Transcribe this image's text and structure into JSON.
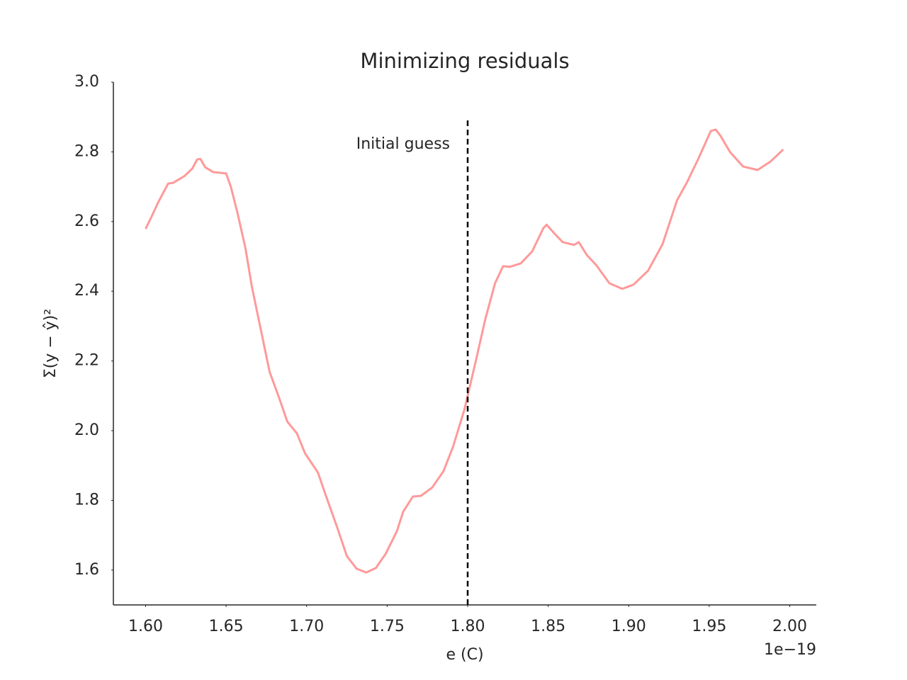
{
  "chart_data": {
    "type": "line",
    "title": "Minimizing residuals",
    "xlabel": "e (C)",
    "ylabel": "Σ(y − ŷ)²",
    "x_offset_label": "1e−19",
    "x": [
      1.6,
      1.6035,
      1.6075,
      1.611,
      1.614,
      1.617,
      1.621,
      1.624,
      1.629,
      1.632,
      1.634,
      1.637,
      1.642,
      1.646,
      1.65,
      1.653,
      1.657,
      1.662,
      1.666,
      1.672,
      1.677,
      1.683,
      1.688,
      1.694,
      1.699,
      1.707,
      1.712,
      1.719,
      1.725,
      1.731,
      1.737,
      1.743,
      1.749,
      1.756,
      1.76,
      1.766,
      1.771,
      1.778,
      1.785,
      1.791,
      1.798,
      1.805,
      1.811,
      1.817,
      1.822,
      1.826,
      1.833,
      1.84,
      1.847,
      1.849,
      1.854,
      1.859,
      1.866,
      1.869,
      1.874,
      1.88,
      1.888,
      1.896,
      1.903,
      1.912,
      1.921,
      1.93,
      1.936,
      1.943,
      1.951,
      1.954,
      1.957,
      1.963,
      1.971,
      1.98,
      1.988,
      1.996
    ],
    "series": [
      {
        "color": "#ff9999",
        "values": [
          2.579,
          2.612,
          2.652,
          2.683,
          2.709,
          2.711,
          2.722,
          2.73,
          2.752,
          2.778,
          2.78,
          2.756,
          2.742,
          2.74,
          2.738,
          2.699,
          2.626,
          2.524,
          2.413,
          2.28,
          2.169,
          2.093,
          2.026,
          1.992,
          1.935,
          1.88,
          1.813,
          1.722,
          1.64,
          1.604,
          1.593,
          1.606,
          1.646,
          1.711,
          1.768,
          1.811,
          1.813,
          1.837,
          1.884,
          1.955,
          2.061,
          2.199,
          2.321,
          2.423,
          2.472,
          2.47,
          2.48,
          2.514,
          2.581,
          2.591,
          2.565,
          2.541,
          2.533,
          2.541,
          2.504,
          2.474,
          2.423,
          2.407,
          2.419,
          2.459,
          2.535,
          2.661,
          2.711,
          2.778,
          2.86,
          2.864,
          2.846,
          2.799,
          2.758,
          2.748,
          2.772,
          2.807
        ]
      }
    ],
    "vline": {
      "x": 1.8,
      "ymin": 1.5,
      "ymax": 2.9,
      "color": "#000000",
      "label": "Initial guess"
    },
    "xlim": [
      1.58,
      2.02
    ],
    "ylim": [
      1.5,
      3.0
    ],
    "xticks": [
      {
        "value": 1.6,
        "label": "1.60"
      },
      {
        "value": 1.65,
        "label": "1.65"
      },
      {
        "value": 1.7,
        "label": "1.70"
      },
      {
        "value": 1.75,
        "label": "1.75"
      },
      {
        "value": 1.8,
        "label": "1.80"
      },
      {
        "value": 1.85,
        "label": "1.85"
      },
      {
        "value": 1.9,
        "label": "1.90"
      },
      {
        "value": 1.95,
        "label": "1.95"
      },
      {
        "value": 2.0,
        "label": "2.00"
      }
    ],
    "yticks": [
      1.6,
      1.8,
      {
        "value": 2.0,
        "label": "2.0"
      },
      2.2,
      2.4,
      2.6,
      2.8,
      {
        "value": 3.0,
        "label": "3.0"
      }
    ],
    "grid": false
  }
}
